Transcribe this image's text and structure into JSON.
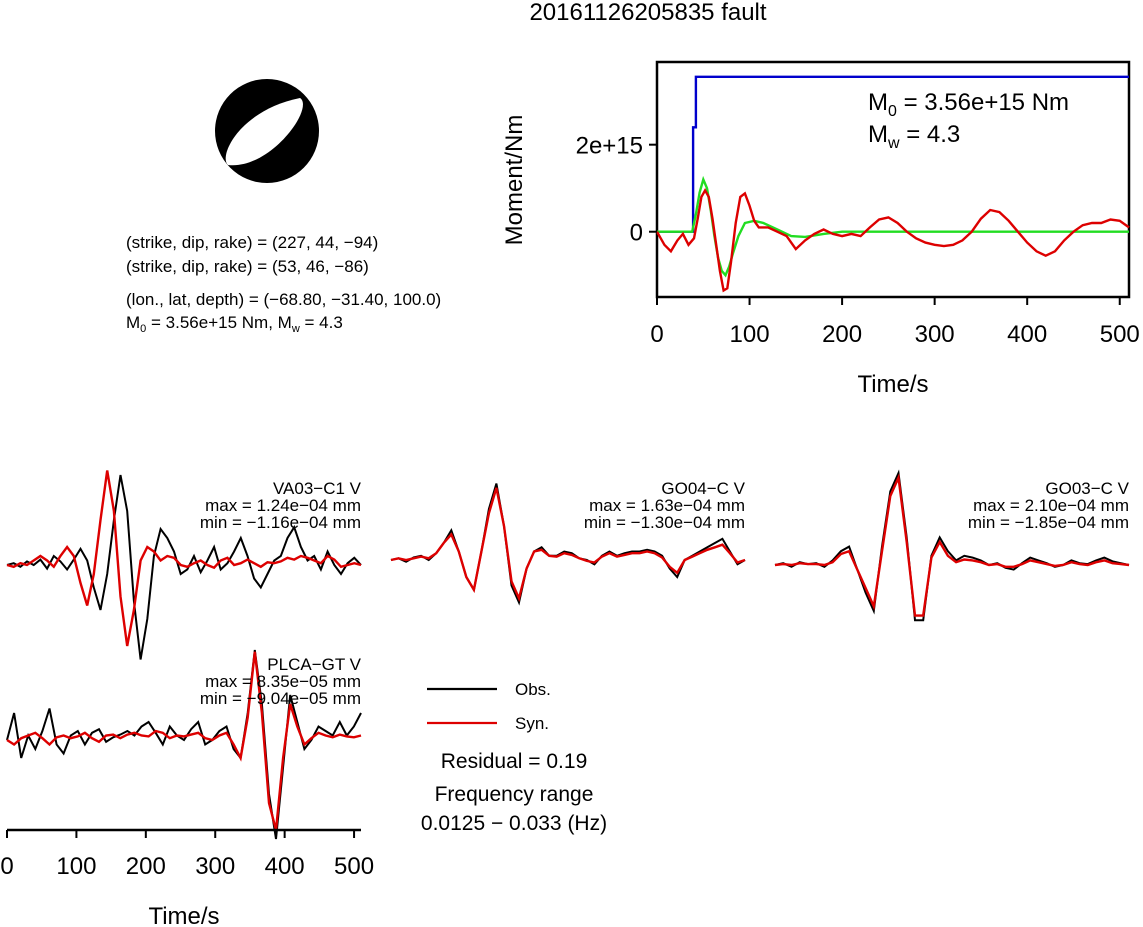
{
  "page": {
    "title": "20161126205835 fault"
  },
  "mechanism": {
    "plane1": "(strike, dip, rake) = (227, 44, −94)",
    "plane2": "(strike, dip, rake) = (53, 46, −86)",
    "location": "(lon., lat, depth) = (−68.80, −31.40, 100.0)",
    "m0_prefix": "M",
    "m0_sub": "0",
    "m0_mid": " = 3.56e+15 Nm, M",
    "mw_sub": "w",
    "mw_suffix": " = 4.3"
  },
  "colors": {
    "observed": "#000000",
    "synthetic": "#dd0000",
    "moment_cumulative": "#0000cc",
    "moment_rate_green": "#22dd22",
    "moment_rate_red": "#dd0000"
  },
  "legend": {
    "obs": "Obs.",
    "syn": "Syn.",
    "residual": "Residual = 0.19",
    "freq_title": "Frequency range",
    "freq_value": "0.0125 − 0.033 (Hz)"
  },
  "chart_data": [
    {
      "type": "line",
      "title": "",
      "xlabel": "Time/s",
      "ylabel": "Moment/Nm",
      "xlim": [
        0,
        510
      ],
      "ylim": [
        -1500000000000000.0,
        3900000000000000.0
      ],
      "x_ticks": [
        "0",
        "100",
        "200",
        "300",
        "400",
        "500"
      ],
      "x_tick_values": [
        0,
        100,
        200,
        300,
        400,
        500
      ],
      "y_ticks": [
        "0",
        "2e+15"
      ],
      "y_tick_values": [
        0,
        2000000000000000.0
      ],
      "annotation": {
        "m0_prefix": "M",
        "m0_sub": "0",
        "m0_rest": " = 3.56e+15 Nm",
        "mw_prefix": "M",
        "mw_sub": "w",
        "mw_rest": " = 4.3"
      },
      "series": [
        {
          "color": "#0000cc",
          "x": [
            0,
            39,
            39,
            42,
            42,
            510
          ],
          "y": [
            0,
            0,
            2400000000000000.0,
            2400000000000000.0,
            3560000000000000.0,
            3560000000000000.0
          ]
        },
        {
          "color": "#22dd22",
          "x": [
            0,
            38,
            42,
            46,
            50,
            54,
            58,
            62,
            66,
            70,
            74,
            78,
            82,
            88,
            95,
            105,
            115,
            130,
            145,
            160,
            180,
            200,
            250,
            300,
            400,
            510
          ],
          "y": [
            0,
            0,
            400000000000000.0,
            900000000000000.0,
            1200000000000000.0,
            1000000000000000.0,
            500000000000000.0,
            -100000000000000.0,
            -600000000000000.0,
            -900000000000000.0,
            -1000000000000000.0,
            -800000000000000.0,
            -500000000000000.0,
            -100000000000000.0,
            200000000000000.0,
            250000000000000.0,
            200000000000000.0,
            50000000000000.0,
            -100000000000000.0,
            -120000000000000.0,
            -50000000000000.0,
            0,
            0,
            0,
            0,
            0
          ]
        },
        {
          "color": "#dd0000",
          "x": [
            0,
            8,
            15,
            22,
            28,
            34,
            40,
            44,
            48,
            52,
            56,
            60,
            64,
            68,
            72,
            76,
            80,
            85,
            90,
            95,
            100,
            105,
            110,
            120,
            130,
            140,
            150,
            160,
            170,
            180,
            190,
            200,
            210,
            220,
            230,
            240,
            250,
            260,
            270,
            280,
            290,
            300,
            310,
            320,
            330,
            340,
            350,
            360,
            370,
            380,
            390,
            400,
            410,
            420,
            430,
            440,
            450,
            460,
            470,
            480,
            490,
            500,
            510
          ],
          "y": [
            0,
            -300000000000000.0,
            -450000000000000.0,
            -200000000000000.0,
            -50000000000000.0,
            -300000000000000.0,
            -150000000000000.0,
            300000000000000.0,
            800000000000000.0,
            950000000000000.0,
            800000000000000.0,
            300000000000000.0,
            -300000000000000.0,
            -900000000000000.0,
            -1350000000000000.0,
            -1300000000000000.0,
            -700000000000000.0,
            200000000000000.0,
            800000000000000.0,
            880000000000000.0,
            600000000000000.0,
            250000000000000.0,
            100000000000000.0,
            100000000000000.0,
            0,
            -100000000000000.0,
            -400000000000000.0,
            -200000000000000.0,
            -50000000000000.0,
            50000000000000.0,
            -50000000000000.0,
            -100000000000000.0,
            -50000000000000.0,
            -100000000000000.0,
            100000000000000.0,
            280000000000000.0,
            330000000000000.0,
            200000000000000.0,
            0,
            -150000000000000.0,
            -250000000000000.0,
            -300000000000000.0,
            -330000000000000.0,
            -300000000000000.0,
            -200000000000000.0,
            0,
            300000000000000.0,
            500000000000000.0,
            450000000000000.0,
            250000000000000.0,
            0,
            -250000000000000.0,
            -450000000000000.0,
            -550000000000000.0,
            -450000000000000.0,
            -200000000000000.0,
            0,
            150000000000000.0,
            200000000000000.0,
            200000000000000.0,
            280000000000000.0,
            250000000000000.0,
            100000000000000.0
          ]
        }
      ]
    },
    {
      "type": "line",
      "title": "",
      "xlabel": "Time/s",
      "ylabel": "",
      "xlim": [
        0,
        510
      ],
      "x_ticks": [
        "0",
        "100",
        "200",
        "300",
        "400",
        "500"
      ],
      "x_tick_values": [
        0,
        100,
        200,
        300,
        400,
        500
      ],
      "stations": [
        {
          "name": "VA03−C1 V",
          "max": "max = 1.24e−04 mm",
          "min": "min = −1.16e−04 mm",
          "obs": [
            0,
            0.02,
            -0.02,
            0.04,
            0,
            0.06,
            -0.04,
            0.1,
            0.04,
            -0.05,
            0.06,
            0.18,
            0.05,
            -0.25,
            -0.5,
            -0.1,
            0.5,
            1.0,
            0.6,
            -0.4,
            -1.05,
            -0.6,
            0.1,
            0.4,
            0.3,
            0.15,
            -0.1,
            -0.05,
            0.1,
            -0.08,
            0.05,
            0.2,
            -0.05,
            0.02,
            0.15,
            0.3,
            0.1,
            -0.15,
            -0.25,
            -0.1,
            0.05,
            0.1,
            0.3,
            0.42,
            0.2,
            0.05,
            0.1,
            -0.05,
            0.15,
            0,
            -0.1,
            0.02,
            0.08,
            0
          ],
          "syn": [
            0,
            -0.02,
            0.02,
            0,
            0.05,
            0.1,
            0.05,
            -0.02,
            0.1,
            0.2,
            0.1,
            -0.2,
            -0.45,
            -0.1,
            0.5,
            1.05,
            0.6,
            -0.35,
            -0.9,
            -0.5,
            0.05,
            0.2,
            0.15,
            0.05,
            0.1,
            0.08,
            0,
            -0.02,
            0.02,
            0.05,
            0,
            -0.03,
            0.05,
            0.08,
            0,
            0.02,
            0.06,
            0.02,
            -0.02,
            0.03,
            0.02,
            0.04,
            0.08,
            0.06,
            0.1,
            0.08,
            0.05,
            0.02,
            0.1,
            0.06,
            -0.02,
            0,
            0.02,
            0
          ],
          "syn_scale": 1
        },
        {
          "name": "GO04−C V",
          "max": "max = 1.63e−04 mm",
          "min": "min = −1.30e−04 mm",
          "obs": [
            0,
            0.02,
            -0.02,
            0.03,
            0.05,
            0,
            0.08,
            0.2,
            0.35,
            0.1,
            -0.2,
            -0.35,
            0.1,
            0.6,
            0.9,
            0.4,
            -0.3,
            -0.5,
            -0.1,
            0.1,
            0.15,
            0.05,
            0.05,
            0.1,
            0.08,
            0.02,
            0,
            -0.05,
            0.05,
            0.1,
            0.05,
            0.08,
            0.1,
            0.1,
            0.12,
            0.1,
            0.05,
            -0.1,
            -0.2,
            0,
            0.05,
            0.1,
            0.15,
            0.2,
            0.25,
            0.1,
            -0.05,
            0
          ],
          "syn": [
            0,
            0.02,
            0,
            0.02,
            0.04,
            0.02,
            0.08,
            0.2,
            0.3,
            0.1,
            -0.2,
            -0.35,
            0.1,
            0.55,
            0.85,
            0.4,
            -0.25,
            -0.45,
            -0.1,
            0.1,
            0.12,
            0.05,
            0.04,
            0.08,
            0.06,
            0.02,
            -0.01,
            -0.03,
            0.04,
            0.08,
            0.04,
            0.06,
            0.08,
            0.08,
            0.1,
            0.08,
            0.03,
            -0.08,
            -0.15,
            0,
            0.04,
            0.08,
            0.12,
            0.15,
            0.18,
            0.08,
            -0.03,
            0
          ],
          "syn_scale": 1
        },
        {
          "name": "GO03−C V",
          "max": "max = 2.10e−04 mm",
          "min": "min = −1.85e−04 mm",
          "obs": [
            0,
            0.02,
            -0.02,
            0.03,
            0.01,
            0.02,
            -0.02,
            0.05,
            0.15,
            0.2,
            -0.05,
            -0.3,
            -0.5,
            0.2,
            0.8,
            1.0,
            0.3,
            -0.6,
            -0.6,
            0.1,
            0.3,
            0.15,
            0.05,
            0.1,
            0.08,
            0.05,
            0,
            0.02,
            -0.03,
            -0.05,
            0.02,
            0.08,
            0.05,
            0.02,
            -0.02,
            0,
            0.05,
            0.02,
            0.01,
            0.05,
            0.08,
            0.04,
            0.02,
            0
          ],
          "syn": [
            0,
            0.01,
            0,
            0.02,
            0.01,
            0.01,
            0,
            0.03,
            0.12,
            0.15,
            -0.05,
            -0.25,
            -0.45,
            0.15,
            0.75,
            0.95,
            0.25,
            -0.55,
            -0.55,
            0.08,
            0.25,
            0.1,
            0.03,
            0.06,
            0.05,
            0.03,
            0,
            0.01,
            -0.02,
            -0.02,
            0.01,
            0.05,
            0.03,
            0.01,
            -0.01,
            0,
            0.03,
            0.01,
            0,
            0.03,
            0.05,
            0.02,
            0.01,
            0
          ],
          "syn_scale": 1
        },
        {
          "name": "PLCA−GT V",
          "max": "max = 8.35e−05 mm",
          "min": "min = −9.04e−05 mm",
          "obs": [
            0,
            0.3,
            -0.2,
            0.05,
            -0.1,
            0.1,
            0.35,
            -0.05,
            -0.15,
            0.05,
            0.1,
            -0.05,
            0.08,
            0.12,
            -0.02,
            0.03,
            0.06,
            0.1,
            0.05,
            0.15,
            0.2,
            0.08,
            -0.05,
            0.15,
            0.05,
            0,
            0.12,
            0.2,
            -0.05,
            0,
            0.1,
            0.15,
            -0.1,
            -0.2,
            0.3,
            1.0,
            0.4,
            -0.6,
            -1.1,
            -0.3,
            0.5,
            0.2,
            -0.1,
            0,
            0.15,
            0.1,
            0.05,
            0.2,
            0.05,
            0.15,
            0.3
          ],
          "syn": [
            0,
            -0.05,
            0.02,
            0.05,
            0.08,
            0.02,
            -0.05,
            0.03,
            0.05,
            0.02,
            0.04,
            0.08,
            0.02,
            -0.02,
            0.05,
            0.06,
            0.02,
            0.06,
            0.08,
            0.05,
            0.04,
            0.1,
            0.08,
            0.02,
            0.05,
            0.04,
            0.06,
            0.08,
            0.02,
            0,
            0.05,
            0.08,
            -0.05,
            -0.2,
            0.25,
            0.98,
            0.3,
            -0.7,
            -1.0,
            -0.2,
            0.4,
            0.15,
            -0.05,
            0.02,
            0.08,
            0.05,
            0.03,
            0.06,
            0.04,
            0.03,
            0.05
          ],
          "syn_scale": 1
        }
      ]
    }
  ]
}
